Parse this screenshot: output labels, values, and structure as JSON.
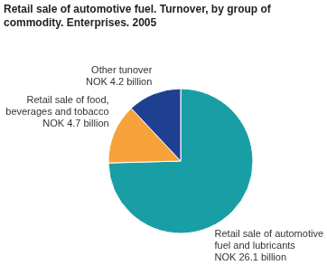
{
  "chart_data": {
    "type": "pie",
    "title": [
      "Retail sale of automotive fuel. Turnover, by group of",
      "commodity. Enterprises. 2005"
    ],
    "categories": [
      "Retail sale of automotive fuel and lubricants",
      "Retail sale of food, beverages and tobacco",
      "Other tunover"
    ],
    "values": [
      26.1,
      4.7,
      4.2
    ],
    "value_labels": [
      "NOK 26.1 billion",
      "NOK 4.7 billion",
      "NOK 4.2 billion"
    ],
    "colors": [
      "#1a9ea6",
      "#f7a23b",
      "#1f3f91"
    ],
    "data_labels": true
  }
}
